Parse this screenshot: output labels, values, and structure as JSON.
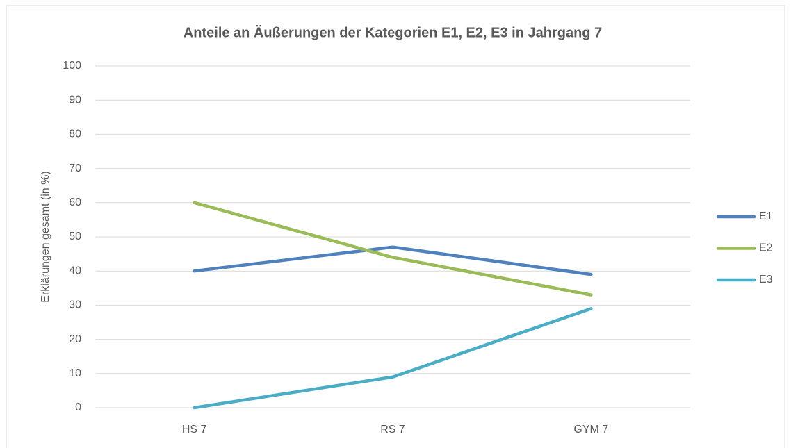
{
  "chart_data": {
    "type": "line",
    "title": "Anteile an Äußerungen der Kategorien E1, E2, E3 in Jahrgang 7",
    "y_label": "Erklärungen gesamt (in %)",
    "categories": [
      "HS 7",
      "RS 7",
      "GYM 7"
    ],
    "series": [
      {
        "name": "E1",
        "color": "#4f81bd",
        "values": [
          40,
          47,
          39
        ]
      },
      {
        "name": "E2",
        "color": "#9bbb59",
        "values": [
          60,
          44,
          33
        ]
      },
      {
        "name": "E3",
        "color": "#4bacc6",
        "values": [
          0,
          9,
          29
        ]
      }
    ],
    "ylim": [
      0,
      100
    ],
    "yticks": [
      0,
      10,
      20,
      30,
      40,
      50,
      60,
      70,
      80,
      90,
      100
    ],
    "grid": true,
    "legend": "right"
  }
}
